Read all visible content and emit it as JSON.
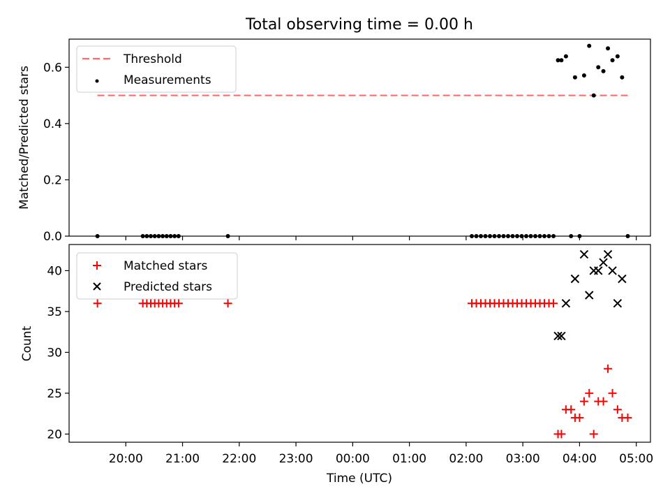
{
  "chart_data": {
    "type": "scatter",
    "title": "Total observing time = 0.00 h",
    "xlabel": "Time (UTC)",
    "x_tick_labels": [
      "20:00",
      "21:00",
      "22:00",
      "23:00",
      "00:00",
      "01:00",
      "02:00",
      "03:00",
      "04:00",
      "05:00"
    ],
    "x_tick_values_hours": [
      20,
      21,
      22,
      23,
      24,
      25,
      26,
      27,
      28,
      29
    ],
    "xlim_hours": [
      19.0,
      29.25
    ],
    "top": {
      "ylabel": "Matched/Predicted stars",
      "ylim": [
        0,
        0.7
      ],
      "yticks": [
        0,
        0.2,
        0.4,
        0.6
      ],
      "ytick_labels": [
        "0.0",
        "0.2",
        "0.4",
        "0.6"
      ],
      "threshold": {
        "name": "Threshold",
        "value": 0.5,
        "x_start": 19.5,
        "x_end": 28.85,
        "color": "#ff6b6b"
      },
      "measurements": {
        "name": "Measurements",
        "color": "#000000",
        "x": [
          19.5,
          20.3,
          20.37,
          20.44,
          20.51,
          20.58,
          20.65,
          20.72,
          20.79,
          20.86,
          20.93,
          21.8,
          26.1,
          26.18,
          26.26,
          26.34,
          26.42,
          26.5,
          26.58,
          26.66,
          26.74,
          26.82,
          26.9,
          26.98,
          27.06,
          27.14,
          27.22,
          27.3,
          27.38,
          27.46,
          27.54,
          27.62,
          27.68,
          27.76,
          27.85,
          27.92,
          28.0,
          28.08,
          28.17,
          28.25,
          28.33,
          28.42,
          28.5,
          28.58,
          28.67,
          28.75,
          28.85
        ],
        "y": [
          0,
          0,
          0,
          0,
          0,
          0,
          0,
          0,
          0,
          0,
          0,
          0,
          0,
          0,
          0,
          0,
          0,
          0,
          0,
          0,
          0,
          0,
          0,
          0,
          0,
          0,
          0,
          0,
          0,
          0,
          0,
          0.625,
          0.625,
          0.639,
          0,
          0.564,
          0,
          0.571,
          0.676,
          0.5,
          0.6,
          0.586,
          0.667,
          0.625,
          0.639,
          0.564,
          0
        ]
      }
    },
    "bottom": {
      "ylabel": "Count",
      "ylim": [
        19,
        43.2
      ],
      "yticks": [
        20,
        25,
        30,
        35,
        40
      ],
      "ytick_labels": [
        "20",
        "25",
        "30",
        "35",
        "40"
      ],
      "matched": {
        "name": "Matched stars",
        "color": "#ff0000",
        "x": [
          19.5,
          20.3,
          20.37,
          20.44,
          20.51,
          20.58,
          20.65,
          20.72,
          20.79,
          20.86,
          20.93,
          21.8,
          26.1,
          26.18,
          26.26,
          26.34,
          26.42,
          26.5,
          26.58,
          26.66,
          26.74,
          26.82,
          26.9,
          26.98,
          27.06,
          27.14,
          27.22,
          27.3,
          27.38,
          27.46,
          27.54,
          27.62,
          27.68,
          27.76,
          27.85,
          27.92,
          28.0,
          28.08,
          28.17,
          28.25,
          28.33,
          28.42,
          28.5,
          28.58,
          28.67,
          28.75,
          28.85
        ],
        "y": [
          36,
          36,
          36,
          36,
          36,
          36,
          36,
          36,
          36,
          36,
          36,
          36,
          36,
          36,
          36,
          36,
          36,
          36,
          36,
          36,
          36,
          36,
          36,
          36,
          36,
          36,
          36,
          36,
          36,
          36,
          36,
          20,
          20,
          23,
          23,
          22,
          22,
          24,
          25,
          20,
          24,
          24,
          28,
          25,
          23,
          22,
          22
        ]
      },
      "predicted": {
        "name": "Predicted stars",
        "color": "#000000",
        "x": [
          27.62,
          27.68,
          27.76,
          27.92,
          28.08,
          28.17,
          28.25,
          28.33,
          28.42,
          28.5,
          28.58,
          28.67,
          28.75
        ],
        "y": [
          32,
          32,
          36,
          39,
          42,
          37,
          40,
          40,
          41,
          42,
          40,
          36,
          39
        ]
      }
    }
  }
}
